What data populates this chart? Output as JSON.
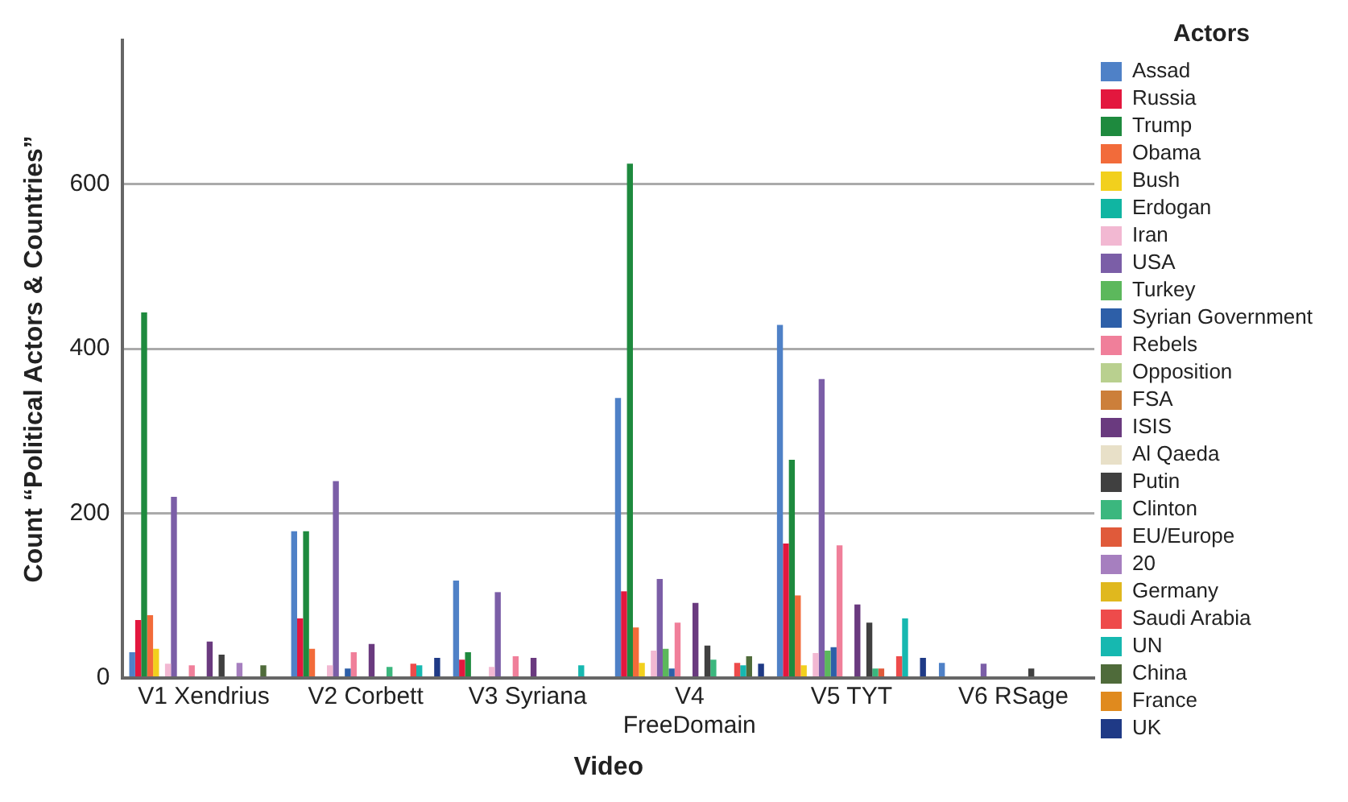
{
  "chart_data": {
    "type": "bar",
    "xlabel": "Video",
    "ylabel": "Count “Political Actors & Countries”",
    "legend_title": "Actors",
    "categories": [
      "V1 Xendrius",
      "V2 Corbett",
      "V3 Syriana",
      "V4 FreeDomain",
      "V5 TYT",
      "V6 RSage"
    ],
    "ylim": [
      0,
      775
    ],
    "yticks": [
      0,
      200,
      400,
      600
    ],
    "grid": "y",
    "legend": "right",
    "series": [
      {
        "name": "Assad",
        "color": "#4f81c7",
        "values": [
          31,
          178,
          118,
          340,
          429,
          18
        ]
      },
      {
        "name": "Russia",
        "color": "#e3173e",
        "values": [
          70,
          72,
          22,
          105,
          163,
          0
        ]
      },
      {
        "name": "Trump",
        "color": "#1e8a3e",
        "values": [
          444,
          178,
          31,
          625,
          265,
          0
        ]
      },
      {
        "name": "Obama",
        "color": "#f26b3a",
        "values": [
          76,
          35,
          0,
          61,
          100,
          0
        ]
      },
      {
        "name": "Bush",
        "color": "#f2d01d",
        "values": [
          35,
          0,
          0,
          18,
          15,
          0
        ]
      },
      {
        "name": "Erdogan",
        "color": "#10b5a2",
        "values": [
          0,
          0,
          0,
          0,
          0,
          0
        ]
      },
      {
        "name": "Iran",
        "color": "#f2b8d2",
        "values": [
          17,
          15,
          13,
          33,
          30,
          0
        ]
      },
      {
        "name": "USA",
        "color": "#7b5ea7",
        "values": [
          220,
          239,
          104,
          120,
          363,
          17
        ]
      },
      {
        "name": "Turkey",
        "color": "#5cb85c",
        "values": [
          0,
          0,
          0,
          35,
          33,
          0
        ]
      },
      {
        "name": "Syrian Government",
        "color": "#2d5fa8",
        "values": [
          0,
          11,
          0,
          11,
          37,
          0
        ]
      },
      {
        "name": "Rebels",
        "color": "#f07f9a",
        "values": [
          15,
          31,
          26,
          67,
          161,
          0
        ]
      },
      {
        "name": "Opposition",
        "color": "#b9d08f",
        "values": [
          0,
          0,
          0,
          0,
          0,
          0
        ]
      },
      {
        "name": "FSA",
        "color": "#cc7f3a",
        "values": [
          0,
          0,
          0,
          0,
          0,
          0
        ]
      },
      {
        "name": "ISIS",
        "color": "#6a3a7f",
        "values": [
          44,
          41,
          24,
          91,
          89,
          0
        ]
      },
      {
        "name": "Al Qaeda",
        "color": "#e8e0c8",
        "values": [
          0,
          0,
          0,
          0,
          0,
          0
        ]
      },
      {
        "name": "Putin",
        "color": "#404040",
        "values": [
          28,
          0,
          0,
          39,
          67,
          11
        ]
      },
      {
        "name": "Clinton",
        "color": "#3bb77e",
        "values": [
          0,
          13,
          0,
          22,
          11,
          0
        ]
      },
      {
        "name": "EU/Europe",
        "color": "#e05a3a",
        "values": [
          0,
          0,
          0,
          0,
          11,
          0
        ]
      },
      {
        "name": "20",
        "color": "#a67fbf",
        "values": [
          18,
          0,
          0,
          0,
          0,
          0
        ]
      },
      {
        "name": "Germany",
        "color": "#e0b81e",
        "values": [
          0,
          0,
          0,
          0,
          0,
          0
        ]
      },
      {
        "name": "Saudi Arabia",
        "color": "#ee4b4b",
        "values": [
          0,
          17,
          0,
          18,
          26,
          0
        ]
      },
      {
        "name": "UN",
        "color": "#16b8b0",
        "values": [
          0,
          15,
          15,
          15,
          72,
          0
        ]
      },
      {
        "name": "China",
        "color": "#4f6b3a",
        "values": [
          15,
          0,
          0,
          26,
          0,
          0
        ]
      },
      {
        "name": "France",
        "color": "#e08a1e",
        "values": [
          0,
          0,
          0,
          0,
          0,
          0
        ]
      },
      {
        "name": "UK",
        "color": "#1f3a86",
        "values": [
          0,
          24,
          0,
          17,
          24,
          0
        ]
      }
    ]
  }
}
